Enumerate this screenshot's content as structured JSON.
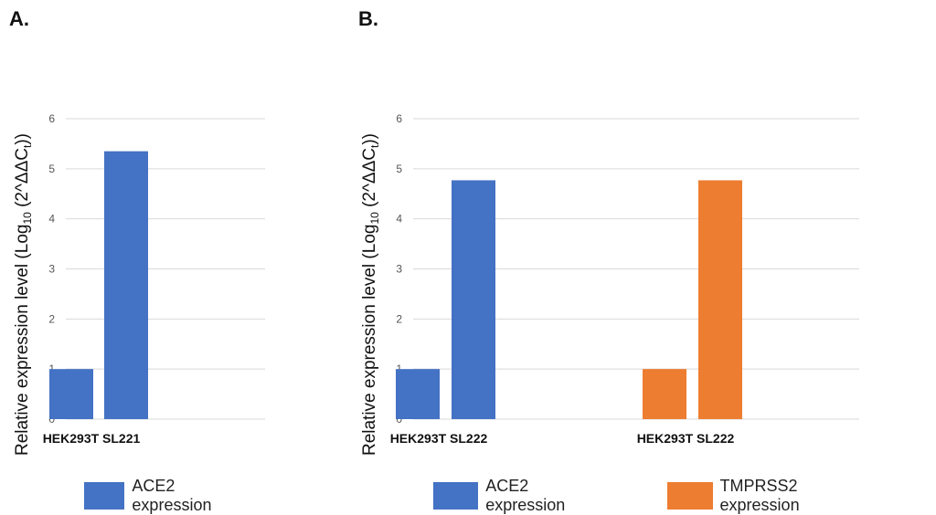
{
  "panels": [
    {
      "letter": "A."
    },
    {
      "letter": "B."
    }
  ],
  "chart_data": [
    {
      "type": "bar",
      "ylabel": "Relative expression level (Log10 (2^ΔΔCt))",
      "ylabel_parts": {
        "pre": "Relative expression level (Log",
        "sub1": "10",
        "mid": " (2^ΔΔC",
        "sub2": "t",
        "post": "))"
      },
      "ylim": [
        0,
        6
      ],
      "yticks": [
        0,
        1,
        2,
        3,
        4,
        5,
        6
      ],
      "grid": true,
      "groups": [
        {
          "label": "HEK293T SL221",
          "series": "ACE2 expression",
          "values": [
            1,
            5.35
          ]
        }
      ],
      "legend": [
        {
          "name": "ACE2 expression",
          "color": "#4472C4"
        }
      ],
      "legend_position": "bottom"
    },
    {
      "type": "bar",
      "ylabel": "Relative expression level (Log10 (2^ΔΔCt))",
      "ylabel_parts": {
        "pre": "Relative expression level (Log",
        "sub1": "10",
        "mid": " (2^ΔΔC",
        "sub2": "t",
        "post": "))"
      },
      "ylim": [
        0,
        6
      ],
      "yticks": [
        0,
        1,
        2,
        3,
        4,
        5,
        6
      ],
      "grid": true,
      "groups": [
        {
          "label": "HEK293T SL222",
          "series": "ACE2 expression",
          "values": [
            1,
            4.77
          ]
        },
        {
          "label": "HEK293T SL222",
          "series": "TMPRSS2 expression",
          "values": [
            1,
            4.77
          ]
        }
      ],
      "legend": [
        {
          "name": "ACE2 expression",
          "color": "#4472C4"
        },
        {
          "name": "TMPRSS2 expression",
          "color": "#ED7D31"
        }
      ],
      "legend_position": "bottom"
    }
  ]
}
